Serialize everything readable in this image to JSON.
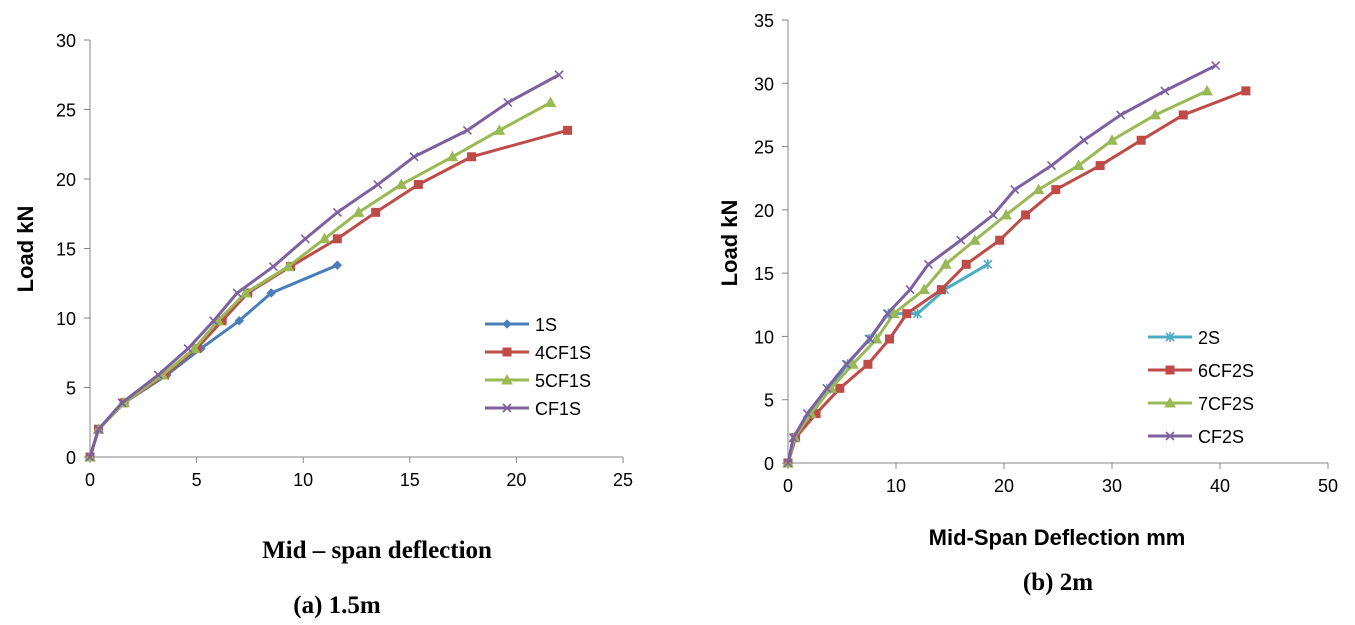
{
  "chart_data": [
    {
      "type": "line",
      "caption": "(a) 1.5m",
      "xlabel": "Mid – span deflection",
      "ylabel": "Load kN",
      "xlim": [
        0,
        25
      ],
      "ylim": [
        0,
        30
      ],
      "xticks": [
        "0",
        "5",
        "10",
        "15",
        "20",
        "25"
      ],
      "yticks": [
        "0",
        "5",
        "10",
        "15",
        "20",
        "25",
        "30"
      ],
      "legend_position": "right",
      "series": [
        {
          "name": "1S",
          "color": "#4a7ebb",
          "marker": "diamond",
          "x": [
            0,
            0.4,
            1.6,
            3.6,
            5.2,
            7.0,
            8.5,
            11.6
          ],
          "y": [
            0,
            2.0,
            3.9,
            5.9,
            7.8,
            9.8,
            11.8,
            13.8
          ]
        },
        {
          "name": "4CF1S",
          "color": "#be4b48",
          "marker": "square",
          "x": [
            0,
            0.4,
            1.6,
            3.5,
            5.0,
            6.2,
            7.4,
            9.4,
            11.6,
            13.4,
            15.4,
            17.9,
            22.4
          ],
          "y": [
            0,
            2.0,
            3.9,
            5.9,
            7.8,
            9.8,
            11.8,
            13.7,
            15.7,
            17.6,
            19.6,
            21.6,
            23.5
          ]
        },
        {
          "name": "5CF1S",
          "color": "#98b954",
          "marker": "triangle",
          "x": [
            0,
            0.4,
            1.6,
            3.4,
            4.9,
            6.0,
            7.3,
            9.3,
            11.0,
            12.6,
            14.6,
            17.0,
            19.2,
            21.6
          ],
          "y": [
            0,
            2.0,
            3.9,
            5.9,
            7.8,
            9.8,
            11.8,
            13.7,
            15.7,
            17.6,
            19.6,
            21.6,
            23.5,
            25.5
          ]
        },
        {
          "name": "CF1S",
          "color": "#7d60a0",
          "marker": "x",
          "x": [
            0,
            0.4,
            1.5,
            3.2,
            4.6,
            5.8,
            6.9,
            8.6,
            10.1,
            11.6,
            13.5,
            15.2,
            17.7,
            19.6,
            22.0
          ],
          "y": [
            0,
            2.0,
            3.9,
            5.9,
            7.8,
            9.8,
            11.8,
            13.7,
            15.7,
            17.6,
            19.6,
            21.6,
            23.5,
            25.5,
            27.5
          ]
        }
      ]
    },
    {
      "type": "line",
      "caption": "(b) 2m",
      "xlabel": "Mid-Span Deflection mm",
      "ylabel": "Load kN",
      "xlim": [
        0,
        50
      ],
      "ylim": [
        0,
        35
      ],
      "xticks": [
        "0",
        "10",
        "20",
        "30",
        "40",
        "50"
      ],
      "yticks": [
        "0",
        "5",
        "10",
        "15",
        "20",
        "25",
        "30",
        "35"
      ],
      "legend_position": "right",
      "series": [
        {
          "name": "2S",
          "color": "#4bacc6",
          "marker": "star",
          "x": [
            0,
            0.5,
            2.2,
            3.9,
            5.5,
            7.5,
            9.3,
            12.0,
            14.5,
            18.5
          ],
          "y": [
            0,
            2.0,
            3.9,
            5.9,
            7.8,
            9.8,
            11.8,
            11.8,
            13.7,
            15.7
          ]
        },
        {
          "name": "6CF2S",
          "color": "#be4b48",
          "marker": "square",
          "x": [
            0,
            0.7,
            2.6,
            4.8,
            7.4,
            9.4,
            11.0,
            14.2,
            16.5,
            19.6,
            22.0,
            24.8,
            28.9,
            32.7,
            36.6,
            42.4
          ],
          "y": [
            0,
            2.0,
            3.9,
            5.9,
            7.8,
            9.8,
            11.8,
            13.7,
            15.7,
            17.6,
            19.6,
            21.6,
            23.5,
            25.5,
            27.5,
            29.4
          ]
        },
        {
          "name": "7CF2S",
          "color": "#98b954",
          "marker": "triangle",
          "x": [
            0,
            0.6,
            2.1,
            4.0,
            6.0,
            8.2,
            9.8,
            12.6,
            14.6,
            17.3,
            20.2,
            23.2,
            26.9,
            30.0,
            34.0,
            38.8
          ],
          "y": [
            0,
            2.0,
            3.9,
            5.9,
            7.8,
            9.8,
            11.8,
            13.7,
            15.7,
            17.6,
            19.6,
            21.6,
            23.5,
            25.5,
            27.5,
            29.4
          ]
        },
        {
          "name": "CF2S",
          "color": "#7d60a0",
          "marker": "x",
          "x": [
            0,
            0.5,
            1.8,
            3.6,
            5.4,
            7.6,
            9.2,
            11.3,
            13.0,
            16.0,
            19.0,
            21.0,
            24.4,
            27.4,
            30.8,
            34.9,
            39.6
          ],
          "y": [
            0,
            2.0,
            3.9,
            5.9,
            7.8,
            9.8,
            11.8,
            13.7,
            15.7,
            17.6,
            19.6,
            21.6,
            23.5,
            25.5,
            27.5,
            29.4,
            31.4
          ]
        }
      ]
    }
  ]
}
